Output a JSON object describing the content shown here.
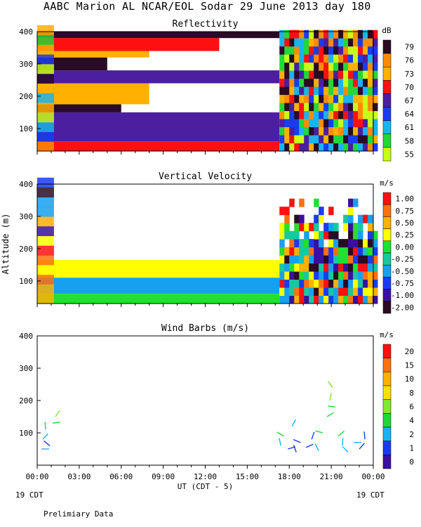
{
  "title": "AABC Marion AL NCAR/EOL Sodar  29 June 2013 day 180",
  "footer": {
    "left_date": "19 CDT",
    "right_date": "19 CDT",
    "note": "Prelimiary Data"
  },
  "chart_data": [
    {
      "type": "heatmap",
      "title": "Reflectivity",
      "units": "dB",
      "xlabel": "UT  (CDT - 5)",
      "ylabel": "",
      "xlim": [
        0,
        24
      ],
      "ylim": [
        30,
        400
      ],
      "xticks": [
        "00:00",
        "03:00",
        "06:00",
        "09:00",
        "12:00",
        "15:00",
        "18:00",
        "21:00",
        "00:00"
      ],
      "yticks": [
        100,
        200,
        300,
        400
      ],
      "colorbar": {
        "labels": [
          "79",
          "76",
          "73",
          "70",
          "67",
          "64",
          "61",
          "58",
          "55"
        ],
        "colors": [
          "#2a0a24",
          "#ff8c00",
          "#ffb000",
          "#ff1010",
          "#4b1fa0",
          "#1a3cf0",
          "#18b4f0",
          "#21d838",
          "#c8ff1a"
        ]
      },
      "layers": [
        {
          "from_alt": 30,
          "to_alt": 60,
          "value": 70,
          "t_end": 17.3
        },
        {
          "from_alt": 60,
          "to_alt": 150,
          "value": 67,
          "t_end": 17.3
        },
        {
          "from_alt": 150,
          "to_alt": 175,
          "value": 79,
          "t_end": 6
        },
        {
          "from_alt": 175,
          "to_alt": 240,
          "value": 73,
          "t_end": 8
        },
        {
          "from_alt": 240,
          "to_alt": 280,
          "value": 67,
          "t_end": 17.3
        },
        {
          "from_alt": 280,
          "to_alt": 320,
          "value": 79,
          "t_end": 5
        },
        {
          "from_alt": 320,
          "to_alt": 340,
          "value": 73,
          "t_end": 8
        },
        {
          "from_alt": 340,
          "to_alt": 380,
          "value": 70,
          "t_end": 13
        },
        {
          "from_alt": 380,
          "to_alt": 400,
          "value": 79,
          "t_end": 17.3
        }
      ]
    },
    {
      "type": "heatmap",
      "title": "Vertical Velocity",
      "units": "m/s",
      "xlabel": "UT  (CDT - 5)",
      "ylabel": "Altitude (m)",
      "xlim": [
        0,
        24
      ],
      "ylim": [
        30,
        400
      ],
      "xticks": [
        "00:00",
        "03:00",
        "06:00",
        "09:00",
        "12:00",
        "15:00",
        "18:00",
        "21:00",
        "00:00"
      ],
      "yticks": [
        100,
        200,
        300,
        400
      ],
      "colorbar": {
        "labels": [
          "1.00",
          "0.75",
          "0.50",
          "0.25",
          "0.00",
          "-0.25",
          "-0.50",
          "-0.75",
          "-1.00",
          "-2.00"
        ],
        "colors": [
          "#ff1010",
          "#ff7010",
          "#ffb000",
          "#ffff00",
          "#20e030",
          "#18c8a0",
          "#18a0f0",
          "#1a3cf0",
          "#3a10a0",
          "#2a0a24"
        ]
      },
      "layers": [
        {
          "from_alt": 30,
          "to_alt": 60,
          "value": 0.0,
          "t_end": 17.3
        },
        {
          "from_alt": 60,
          "to_alt": 140,
          "value": 0.25,
          "t_end": 17.3
        },
        {
          "from_alt": 60,
          "to_alt": 110,
          "value": -0.5,
          "t_end": 17.3
        },
        {
          "from_alt": 140,
          "to_alt": 165,
          "value": 0.25,
          "t_end": 17.3
        }
      ]
    },
    {
      "type": "scatter",
      "title": "Wind Barbs (m/s)",
      "units": "m/s",
      "xlabel": "UT  (CDT - 5)",
      "ylabel": "",
      "xlim": [
        0,
        24
      ],
      "ylim": [
        0,
        400
      ],
      "xticks": [
        "00:00",
        "03:00",
        "06:00",
        "09:00",
        "12:00",
        "15:00",
        "18:00",
        "21:00",
        "00:00"
      ],
      "yticks": [
        100,
        200,
        300,
        400
      ],
      "colorbar": {
        "labels": [
          "20",
          "15",
          "10",
          "8",
          "6",
          "4",
          "2",
          "1",
          "0"
        ],
        "colors": [
          "#ff1010",
          "#ff7010",
          "#ffb000",
          "#ffe000",
          "#80e830",
          "#21d838",
          "#18b4f0",
          "#1a3cf0",
          "#3a10a0"
        ]
      },
      "barbs": [
        {
          "t": 0.3,
          "alt": 50,
          "speed": 2
        },
        {
          "t": 0.4,
          "alt": 80,
          "speed": 2
        },
        {
          "t": 0.6,
          "alt": 110,
          "speed": 3
        },
        {
          "t": 0.9,
          "alt": 60,
          "speed": 1
        },
        {
          "t": 1.1,
          "alt": 130,
          "speed": 4
        },
        {
          "t": 1.3,
          "alt": 150,
          "speed": 5
        },
        {
          "t": 17.4,
          "alt": 60,
          "speed": 2
        },
        {
          "t": 17.6,
          "alt": 90,
          "speed": 3
        },
        {
          "t": 17.9,
          "alt": 50,
          "speed": 1
        },
        {
          "t": 18.2,
          "alt": 120,
          "speed": 2
        },
        {
          "t": 18.5,
          "alt": 40,
          "speed": 1
        },
        {
          "t": 18.8,
          "alt": 70,
          "speed": 1
        },
        {
          "t": 19.2,
          "alt": 55,
          "speed": 1
        },
        {
          "t": 19.6,
          "alt": 80,
          "speed": 1
        },
        {
          "t": 20.1,
          "alt": 45,
          "speed": 2
        },
        {
          "t": 20.4,
          "alt": 100,
          "speed": 3
        },
        {
          "t": 20.7,
          "alt": 150,
          "speed": 4
        },
        {
          "t": 20.9,
          "alt": 200,
          "speed": 5
        },
        {
          "t": 21.1,
          "alt": 240,
          "speed": 5
        },
        {
          "t": 21.3,
          "alt": 180,
          "speed": 4
        },
        {
          "t": 21.5,
          "alt": 90,
          "speed": 3
        },
        {
          "t": 21.8,
          "alt": 60,
          "speed": 2
        },
        {
          "t": 22.2,
          "alt": 40,
          "speed": 2
        },
        {
          "t": 22.6,
          "alt": 70,
          "speed": 2
        },
        {
          "t": 23.0,
          "alt": 50,
          "speed": 1
        },
        {
          "t": 23.4,
          "alt": 80,
          "speed": 1
        }
      ]
    }
  ]
}
